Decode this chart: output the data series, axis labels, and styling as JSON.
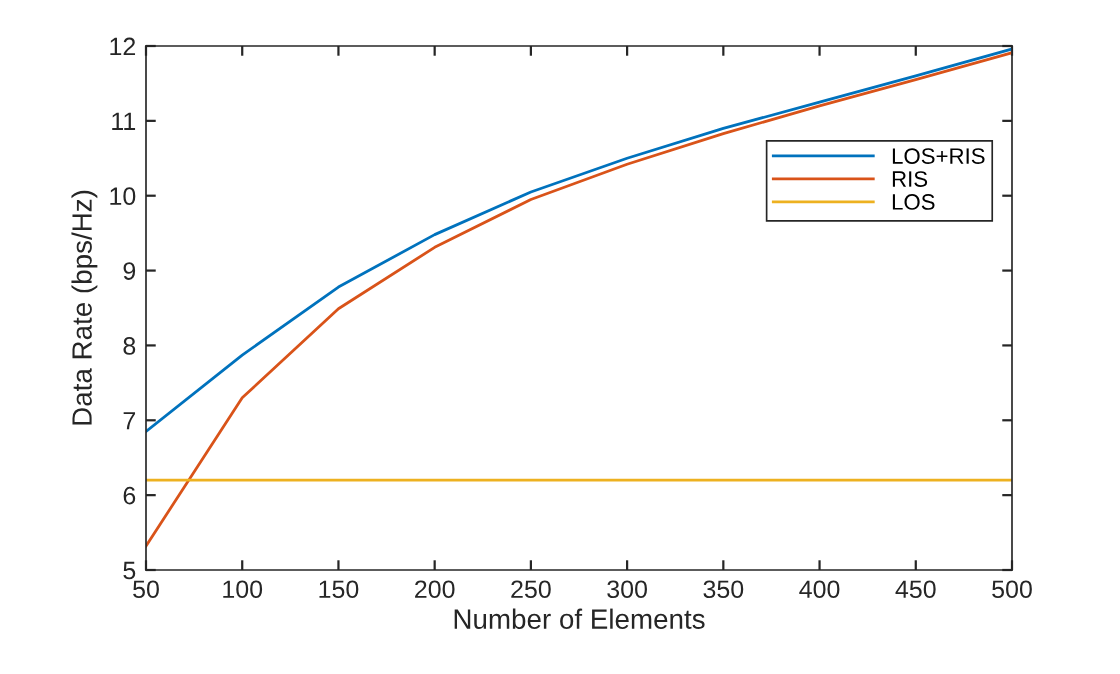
{
  "chart_data": {
    "type": "line",
    "xlabel": "Number of Elements",
    "ylabel": "Data Rate (bps/Hz)",
    "x": [
      50,
      100,
      150,
      200,
      250,
      300,
      350,
      400,
      450,
      500
    ],
    "series": [
      {
        "name": "LOS+RIS",
        "color": "#0072bd",
        "values": [
          6.85,
          7.87,
          8.78,
          9.48,
          10.05,
          10.5,
          10.9,
          11.25,
          11.6,
          11.96
        ]
      },
      {
        "name": "RIS",
        "color": "#d95319",
        "values": [
          5.32,
          7.3,
          8.49,
          9.31,
          9.95,
          10.42,
          10.83,
          11.2,
          11.55,
          11.91
        ]
      },
      {
        "name": "LOS",
        "color": "#edb120",
        "values": [
          6.2,
          6.2,
          6.2,
          6.2,
          6.2,
          6.2,
          6.2,
          6.2,
          6.2,
          6.2
        ]
      }
    ],
    "xlim": [
      50,
      500
    ],
    "xticks": [
      50,
      100,
      150,
      200,
      250,
      300,
      350,
      400,
      450,
      500
    ],
    "ylim": [
      5,
      12
    ],
    "yticks": [
      5,
      6,
      7,
      8,
      9,
      10,
      11,
      12
    ],
    "legend": "top right",
    "grid": false
  }
}
